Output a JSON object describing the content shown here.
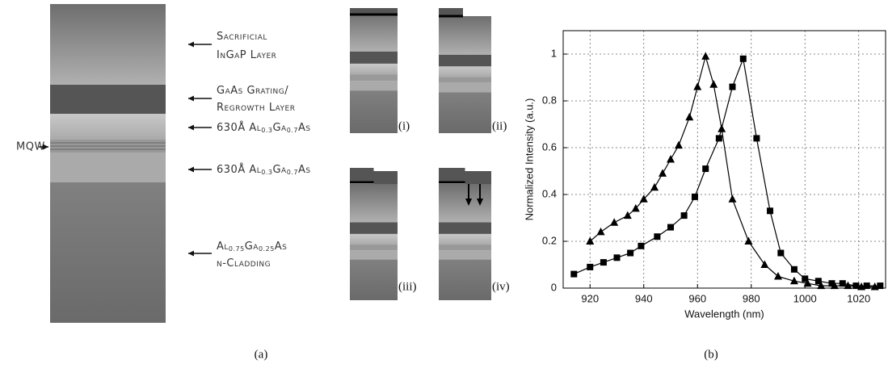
{
  "layer_diagram": {
    "labels": [
      {
        "lines": [
          [
            {
              "text": "Sacrificial"
            }
          ],
          [
            {
              "text": "InGaP Layer"
            }
          ]
        ]
      },
      {
        "lines": [
          [
            {
              "text": "GaAs Grating/"
            }
          ],
          [
            {
              "text": "Regrowth Layer"
            }
          ]
        ]
      },
      {
        "lines": [
          [
            {
              "text": "630Å Al"
            },
            {
              "text": "0.3",
              "sub": true
            },
            {
              "text": "Ga"
            },
            {
              "text": "0.7",
              "sub": true
            },
            {
              "text": "As"
            }
          ]
        ]
      },
      {
        "lines": [
          [
            {
              "text": "630Å Al"
            },
            {
              "text": "0.3",
              "sub": true
            },
            {
              "text": "Ga"
            },
            {
              "text": "0.7",
              "sub": true
            },
            {
              "text": "As"
            }
          ]
        ]
      },
      {
        "lines": [
          [
            {
              "text": "Al"
            },
            {
              "text": "0.75",
              "sub": true
            },
            {
              "text": "Ga"
            },
            {
              "text": "0.25",
              "sub": true
            },
            {
              "text": "As"
            }
          ],
          [
            {
              "text": "n-Cladding"
            }
          ]
        ]
      }
    ],
    "mqw_label": "MQW",
    "step_labels": [
      "(i)",
      "(ii)",
      "(iii)",
      "(iv)"
    ]
  },
  "captions": [
    "(a)",
    "(b)"
  ],
  "chart_data": {
    "type": "line",
    "x_label": "Wavelength (nm)",
    "y_label": "Normalized Intensity (a.u.)",
    "xlim": [
      910,
      1030
    ],
    "xticks": [
      920,
      940,
      960,
      980,
      1000,
      1020
    ],
    "ylim": [
      0,
      1.1
    ],
    "yticks": [
      0,
      0.2,
      0.4,
      0.6,
      0.8,
      1
    ],
    "grid": true,
    "series": [
      {
        "color": "#000",
        "marker": "triangle",
        "x": [
          920,
          924,
          929,
          934,
          937,
          940,
          944,
          947,
          950,
          953,
          957,
          960,
          963,
          966,
          969,
          973,
          979,
          985,
          990,
          996,
          1001,
          1006,
          1011,
          1016,
          1021,
          1026
        ],
        "values": [
          0.2,
          0.24,
          0.28,
          0.31,
          0.34,
          0.38,
          0.43,
          0.49,
          0.55,
          0.61,
          0.73,
          0.86,
          0.99,
          0.87,
          0.68,
          0.38,
          0.2,
          0.1,
          0.05,
          0.03,
          0.02,
          0.01,
          0.01,
          0.01,
          0.005,
          0.005
        ]
      },
      {
        "color": "#000",
        "marker": "square",
        "x": [
          914,
          920,
          925,
          930,
          935,
          939,
          945,
          950,
          955,
          959,
          963,
          968,
          973,
          977,
          982,
          987,
          991,
          996,
          1000,
          1005,
          1010,
          1014,
          1019,
          1023,
          1028
        ],
        "values": [
          0.06,
          0.09,
          0.11,
          0.13,
          0.15,
          0.18,
          0.22,
          0.26,
          0.31,
          0.39,
          0.51,
          0.64,
          0.86,
          0.98,
          0.64,
          0.33,
          0.15,
          0.08,
          0.04,
          0.03,
          0.02,
          0.02,
          0.01,
          0.01,
          0.01
        ]
      }
    ]
  }
}
